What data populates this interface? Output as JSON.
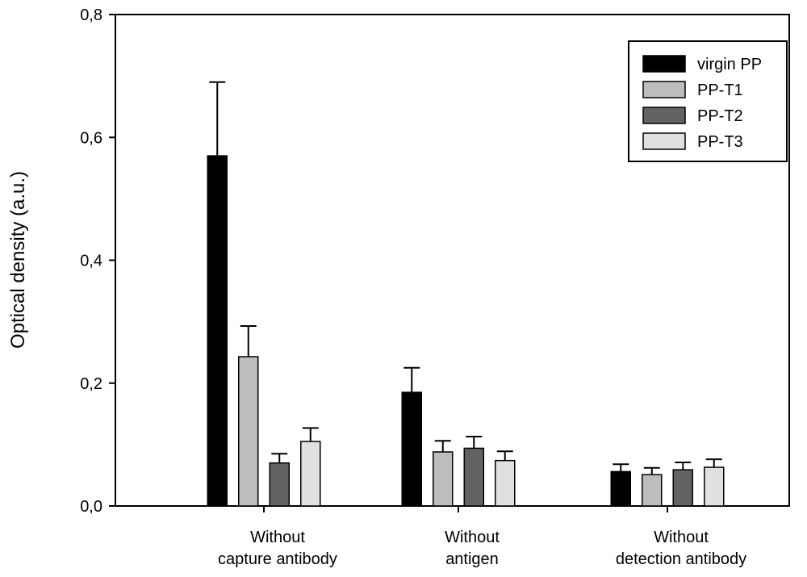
{
  "chart_data": {
    "type": "bar",
    "title": "",
    "xlabel": "",
    "ylabel": "Optical density (a.u.)",
    "ylim": [
      0,
      0.8
    ],
    "yticks": [
      "0,0",
      "0,2",
      "0,4",
      "0,6",
      "0,8"
    ],
    "ytick_values": [
      0,
      0.2,
      0.4,
      0.6,
      0.8
    ],
    "categories": [
      [
        "Without",
        "capture antibody"
      ],
      [
        "Without",
        "antigen"
      ],
      [
        "Without",
        "detection antibody"
      ]
    ],
    "series": [
      {
        "name": "virgin PP",
        "color": "#000000",
        "values": [
          0.57,
          0.185,
          0.056
        ],
        "errors": [
          0.12,
          0.04,
          0.012
        ]
      },
      {
        "name": "PP-T1",
        "color": "#bdbdbd",
        "values": [
          0.243,
          0.088,
          0.051
        ],
        "errors": [
          0.05,
          0.018,
          0.011
        ]
      },
      {
        "name": "PP-T2",
        "color": "#636363",
        "values": [
          0.07,
          0.094,
          0.059
        ],
        "errors": [
          0.015,
          0.019,
          0.012
        ]
      },
      {
        "name": "PP-T3",
        "color": "#e0e0e0",
        "values": [
          0.105,
          0.074,
          0.063
        ],
        "errors": [
          0.022,
          0.015,
          0.013
        ]
      }
    ],
    "legend_position": "top-right",
    "grid": false
  }
}
